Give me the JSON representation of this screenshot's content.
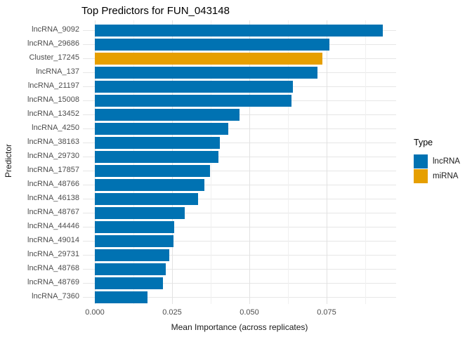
{
  "chart_data": {
    "type": "bar",
    "orientation": "horizontal",
    "title": "Top Predictors for FUN_043148",
    "xlabel": "Mean Importance (across replicates)",
    "ylabel": "Predictor",
    "categories": [
      "lncRNA_9092",
      "lncRNA_29686",
      "Cluster_17245",
      "lncRNA_137",
      "lncRNA_21197",
      "lncRNA_15008",
      "lncRNA_13452",
      "lncRNA_4250",
      "lncRNA_38163",
      "lncRNA_29730",
      "lncRNA_17857",
      "lncRNA_48766",
      "lncRNA_46138",
      "lncRNA_48767",
      "lncRNA_44446",
      "lncRNA_49014",
      "lncRNA_29731",
      "lncRNA_48768",
      "lncRNA_48769",
      "lncRNA_7360"
    ],
    "values": [
      0.0932,
      0.0759,
      0.0736,
      0.0721,
      0.064,
      0.0636,
      0.0468,
      0.0432,
      0.0405,
      0.04,
      0.0373,
      0.0355,
      0.0334,
      0.0291,
      0.0257,
      0.0255,
      0.0241,
      0.0229,
      0.022,
      0.017
    ],
    "types": [
      "lncRNA",
      "lncRNA",
      "miRNA",
      "lncRNA",
      "lncRNA",
      "lncRNA",
      "lncRNA",
      "lncRNA",
      "lncRNA",
      "lncRNA",
      "lncRNA",
      "lncRNA",
      "lncRNA",
      "lncRNA",
      "lncRNA",
      "lncRNA",
      "lncRNA",
      "lncRNA",
      "lncRNA",
      "lncRNA"
    ],
    "type_colors": {
      "lncRNA": "#0072B2",
      "miRNA": "#E69F00"
    },
    "x_ticks": [
      0,
      0.025,
      0.05,
      0.075
    ],
    "x_tick_labels": [
      "0.000",
      "0.025",
      "0.050",
      "0.075"
    ],
    "x_minor_ticks": [
      0.0125,
      0.0375,
      0.0625,
      0.0875
    ],
    "xlim": [
      -0.004,
      0.0975
    ],
    "grid": true,
    "legend_position": "right",
    "legend": {
      "title": "Type",
      "items": [
        {
          "label": "lncRNA",
          "color": "#0072B2"
        },
        {
          "label": "miRNA",
          "color": "#E69F00"
        }
      ]
    }
  }
}
